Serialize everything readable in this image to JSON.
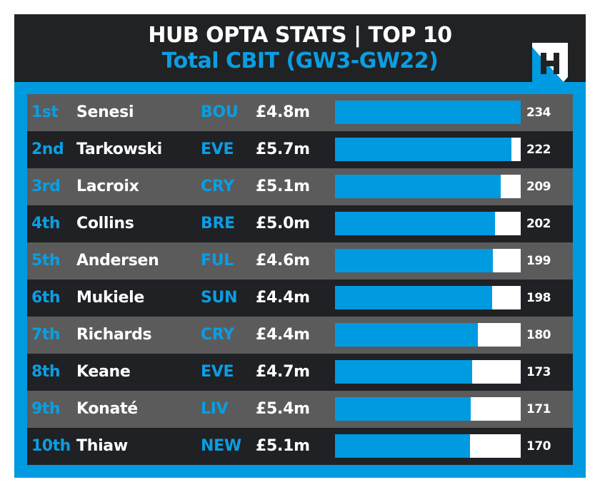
{
  "header": {
    "title": "HUB OPTA STATS | TOP 10",
    "subtitle": "Total CBIT (GW3-GW22)",
    "logo": "hub-logo-icon"
  },
  "colors": {
    "accent_blue": "#009ae1",
    "header_bg": "#212224",
    "row_light": "#5b5b5b",
    "row_dark": "#202124",
    "bar_track": "#ffffff"
  },
  "rows": [
    {
      "rank": "1st",
      "name": "Senesi",
      "team": "BOU",
      "price": "£4.8m",
      "value": "234"
    },
    {
      "rank": "2nd",
      "name": "Tarkowski",
      "team": "EVE",
      "price": "£5.7m",
      "value": "222"
    },
    {
      "rank": "3rd",
      "name": "Lacroix",
      "team": "CRY",
      "price": "£5.1m",
      "value": "209"
    },
    {
      "rank": "4th",
      "name": "Collins",
      "team": "BRE",
      "price": "£5.0m",
      "value": "202"
    },
    {
      "rank": "5th",
      "name": "Andersen",
      "team": "FUL",
      "price": "£4.6m",
      "value": "199"
    },
    {
      "rank": "6th",
      "name": "Mukiele",
      "team": "SUN",
      "price": "£4.4m",
      "value": "198"
    },
    {
      "rank": "7th",
      "name": "Richards",
      "team": "CRY",
      "price": "£4.4m",
      "value": "180"
    },
    {
      "rank": "8th",
      "name": "Keane",
      "team": "EVE",
      "price": "£4.7m",
      "value": "173"
    },
    {
      "rank": "9th",
      "name": "Konaté",
      "team": "LIV",
      "price": "£5.4m",
      "value": "171"
    },
    {
      "rank": "10th",
      "name": "Thiaw",
      "team": "NEW",
      "price": "£5.1m",
      "value": "170"
    }
  ],
  "chart_data": {
    "type": "bar",
    "orientation": "horizontal",
    "title": "HUB OPTA STATS | TOP 10",
    "subtitle": "Total CBIT (GW3-GW22)",
    "categories": [
      "Senesi",
      "Tarkowski",
      "Lacroix",
      "Collins",
      "Andersen",
      "Mukiele",
      "Richards",
      "Keane",
      "Konaté",
      "Thiaw"
    ],
    "ranks": [
      "1st",
      "2nd",
      "3rd",
      "4th",
      "5th",
      "6th",
      "7th",
      "8th",
      "9th",
      "10th"
    ],
    "teams": [
      "BOU",
      "EVE",
      "CRY",
      "BRE",
      "FUL",
      "SUN",
      "CRY",
      "EVE",
      "LIV",
      "NEW"
    ],
    "prices": [
      "£4.8m",
      "£5.7m",
      "£5.1m",
      "£5.0m",
      "£4.6m",
      "£4.4m",
      "£4.4m",
      "£4.7m",
      "£5.4m",
      "£5.1m"
    ],
    "values": [
      234,
      222,
      209,
      202,
      199,
      198,
      180,
      173,
      171,
      170
    ],
    "xlabel": "",
    "ylabel": "Total CBIT",
    "xlim": [
      0,
      234
    ],
    "grid": false,
    "legend": null
  }
}
